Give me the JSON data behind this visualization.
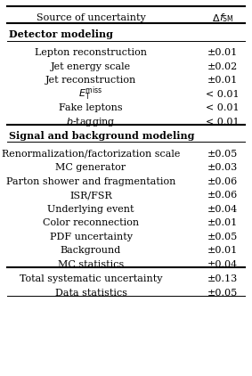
{
  "title_row": [
    "Source of uncertainty",
    "Δf_SM"
  ],
  "sections": [
    {
      "header": "Detector modeling",
      "rows": [
        [
          "Lepton reconstruction",
          "±0.01"
        ],
        [
          "Jet energy scale",
          "±0.02"
        ],
        [
          "Jet reconstruction",
          "±0.01"
        ],
        [
          "E_T^miss",
          "< 0.01"
        ],
        [
          "Fake leptons",
          "< 0.01"
        ],
        [
          "$b$-tagging",
          "< 0.01"
        ]
      ]
    },
    {
      "header": "Signal and background modeling",
      "rows": [
        [
          "Renormalization/factorization scale",
          "±0.05"
        ],
        [
          "MC generator",
          "±0.03"
        ],
        [
          "Parton shower and fragmentation",
          "±0.06"
        ],
        [
          "ISR/FSR",
          "±0.06"
        ],
        [
          "Underlying event",
          "±0.04"
        ],
        [
          "Color reconnection",
          "±0.01"
        ],
        [
          "PDF uncertainty",
          "±0.05"
        ],
        [
          "Background",
          "±0.01"
        ],
        [
          "MC statistics",
          "±0.04"
        ]
      ]
    }
  ],
  "footer_rows": [
    [
      "Total systematic uncertainty",
      "±0.13"
    ],
    [
      "Data statistics",
      "±0.05"
    ]
  ],
  "bg_color": "#ffffff",
  "text_color": "#000000",
  "fontsize": 8.0,
  "fig_width": 2.83,
  "fig_height": 4.22
}
